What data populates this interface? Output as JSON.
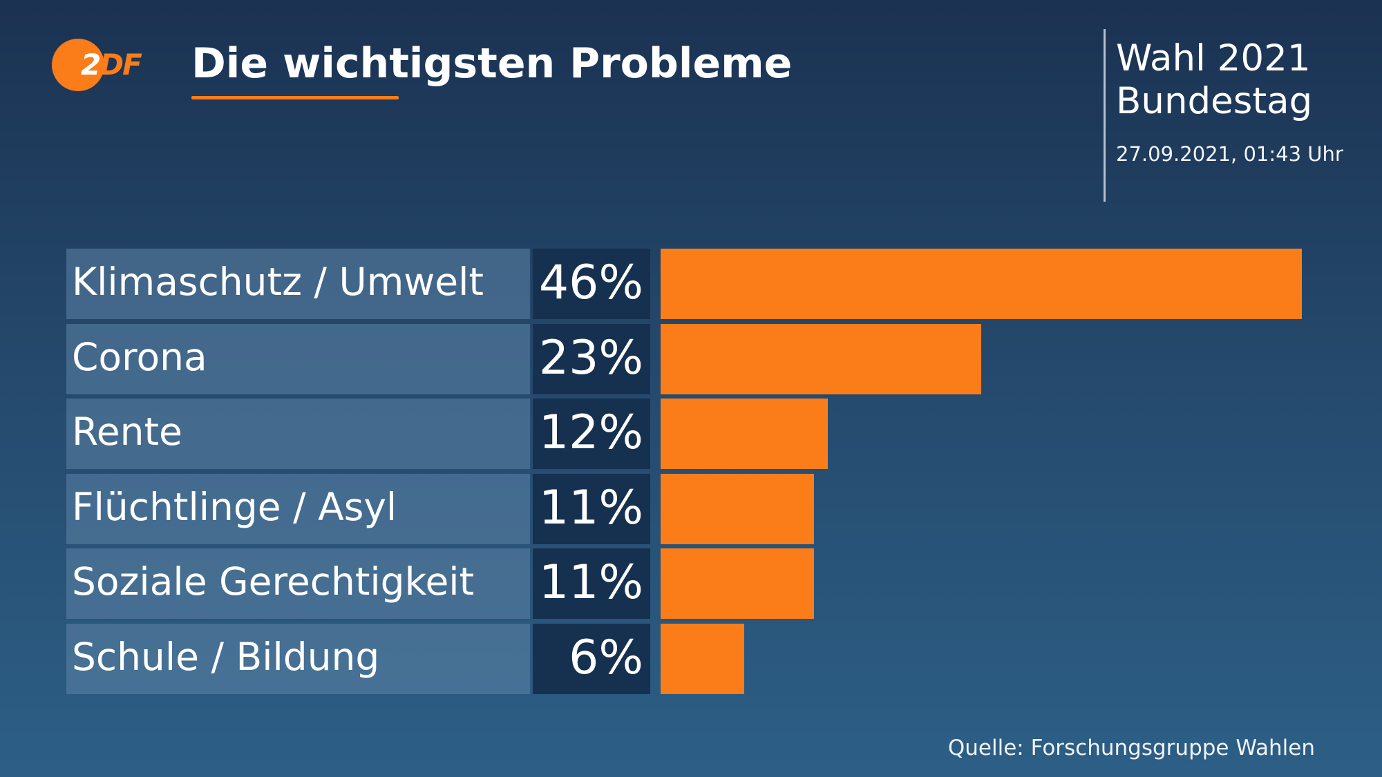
{
  "header": {
    "logo_text_2": "2",
    "logo_text_df": "DF",
    "title": "Die wichtigsten Probleme",
    "election_line1": "Wahl 2021",
    "election_line2": "Bundestag",
    "timestamp": "27.09.2021, 01:43 Uhr"
  },
  "footer": {
    "source": "Quelle: Forschungsgruppe Wahlen"
  },
  "colors": {
    "accent": "#fa7d19",
    "value_box": "#16304f",
    "label_box": "#5d84a6"
  },
  "chart_data": {
    "type": "bar",
    "orientation": "horizontal",
    "title": "Die wichtigsten Probleme",
    "categories": [
      "Klimaschutz / Umwelt",
      "Corona",
      "Rente",
      "Flüchtlinge / Asyl",
      "Soziale Gerechtigkeit",
      "Schule / Bildung"
    ],
    "values": [
      46,
      23,
      12,
      11,
      11,
      6
    ],
    "value_labels": [
      "46%",
      "23%",
      "12%",
      "11%",
      "11%",
      "6%"
    ],
    "unit": "%",
    "xlim": [
      0,
      46
    ],
    "grid": false,
    "legend": "none"
  }
}
